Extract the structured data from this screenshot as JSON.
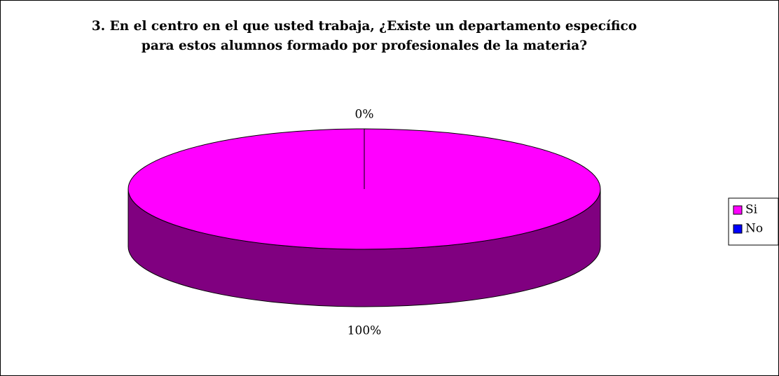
{
  "chart_data": {
    "type": "pie",
    "title": "3. En el centro en el que usted trabaja, ¿Existe un departamento específico para estos alumnos formado por profesionales de la materia?",
    "categories": [
      "Si",
      "No"
    ],
    "values": [
      100,
      0
    ],
    "value_labels": [
      "100%",
      "0%"
    ],
    "colors": [
      "#ff00ff",
      "#0000ff"
    ],
    "side_colors": [
      "#800080",
      "#000080"
    ],
    "legend": "right"
  }
}
